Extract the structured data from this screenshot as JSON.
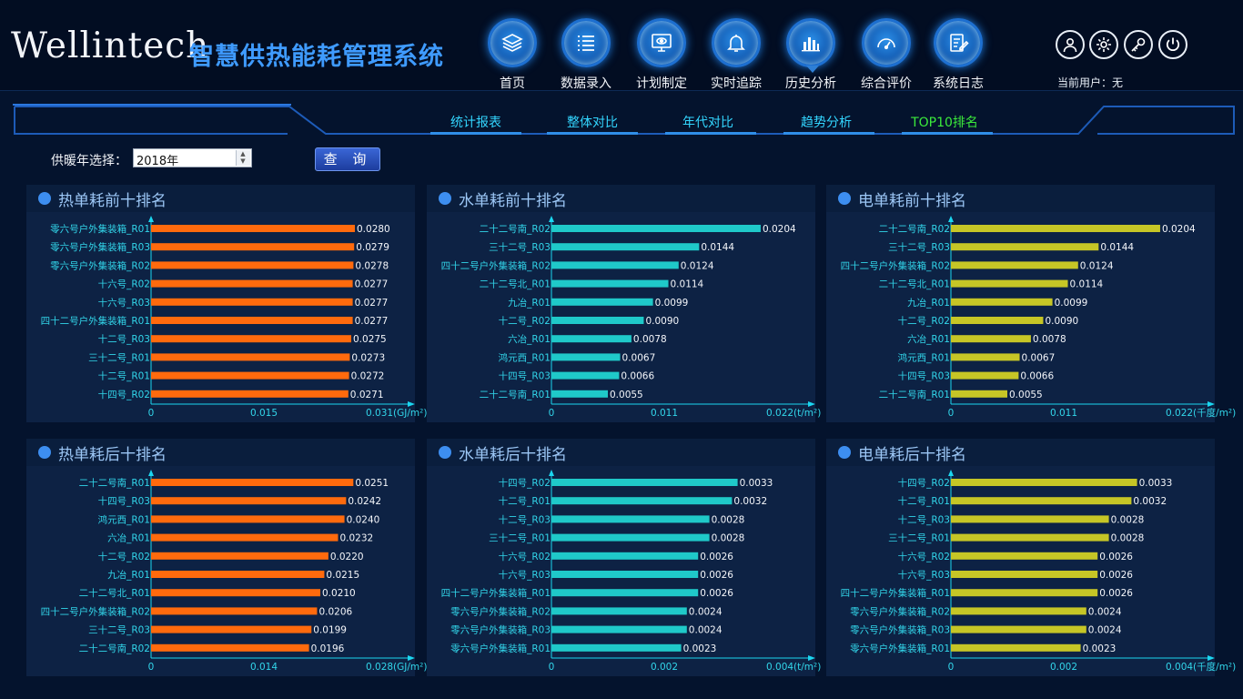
{
  "header": {
    "brand": "Wellintech",
    "title": "智慧供热能耗管理系统",
    "nav": [
      {
        "label": "首页",
        "icon": "layers-icon"
      },
      {
        "label": "数据录入",
        "icon": "list-icon"
      },
      {
        "label": "计划制定",
        "icon": "monitor-eye-icon"
      },
      {
        "label": "实时追踪",
        "icon": "bell-icon"
      },
      {
        "label": "历史分析",
        "icon": "bar-chart-icon",
        "active": true
      },
      {
        "label": "综合评价",
        "icon": "gauge-icon"
      },
      {
        "label": "系统日志",
        "icon": "document-edit-icon"
      }
    ],
    "utilities": [
      "user-icon",
      "gear-icon",
      "key-icon",
      "power-icon"
    ],
    "current_user": "当前用户：无"
  },
  "subnav": {
    "tabs": [
      "统计报表",
      "整体对比",
      "年代对比",
      "趋势分析",
      "TOP10排名"
    ],
    "active": "TOP10排名"
  },
  "query": {
    "label": "供暖年选择：",
    "year_value": "2018年",
    "button": "查 询"
  },
  "colors": {
    "heat": "#ff6a0d",
    "water": "#1fc9c9",
    "electric": "#c6c626",
    "axis": "#1bd6f0",
    "label": "#32d6ea"
  },
  "panels": [
    {
      "title": "热单耗前十排名",
      "chart_data": {
        "type": "bar",
        "orientation": "horizontal",
        "categories": [
          "零六号户外集装箱_R01",
          "零六号户外集装箱_R03",
          "零六号户外集装箱_R02",
          "十六号_R02",
          "十六号_R03",
          "四十二号户外集装箱_R01",
          "十二号_R03",
          "三十二号_R01",
          "十二号_R01",
          "十四号_R02"
        ],
        "values": [
          0.028,
          0.0279,
          0.0278,
          0.0277,
          0.0277,
          0.0277,
          0.0275,
          0.0273,
          0.0272,
          0.0271
        ],
        "value_labels": [
          "0.0280",
          "0.0279",
          "0.0278",
          "0.0277",
          "0.0277",
          "0.0277",
          "0.0275",
          "0.0273",
          "0.0272",
          "0.0271"
        ],
        "xlim": [
          0,
          0.031
        ],
        "x_ticks": [
          "0",
          "0.015",
          "0.031"
        ],
        "unit": "(GJ/m²)",
        "color": "heat"
      }
    },
    {
      "title": "水单耗前十排名",
      "chart_data": {
        "type": "bar",
        "orientation": "horizontal",
        "categories": [
          "二十二号南_R02",
          "三十二号_R03",
          "四十二号户外集装箱_R02",
          "二十二号北_R01",
          "九冶_R01",
          "十二号_R02",
          "六冶_R01",
          "鸿元西_R01",
          "十四号_R03",
          "二十二号南_R01"
        ],
        "values": [
          0.0204,
          0.0144,
          0.0124,
          0.0114,
          0.0099,
          0.009,
          0.0078,
          0.0067,
          0.0066,
          0.0055
        ],
        "value_labels": [
          "0.0204",
          "0.0144",
          "0.0124",
          "0.0114",
          "0.0099",
          "0.0090",
          "0.0078",
          "0.0067",
          "0.0066",
          "0.0055"
        ],
        "xlim": [
          0,
          0.022
        ],
        "x_ticks": [
          "0",
          "0.011",
          "0.022"
        ],
        "unit": "(t/m²)",
        "color": "water"
      }
    },
    {
      "title": "电单耗前十排名",
      "chart_data": {
        "type": "bar",
        "orientation": "horizontal",
        "categories": [
          "二十二号南_R02",
          "三十二号_R03",
          "四十二号户外集装箱_R02",
          "二十二号北_R01",
          "九冶_R01",
          "十二号_R02",
          "六冶_R01",
          "鸿元西_R01",
          "十四号_R03",
          "二十二号南_R01"
        ],
        "values": [
          0.0204,
          0.0144,
          0.0124,
          0.0114,
          0.0099,
          0.009,
          0.0078,
          0.0067,
          0.0066,
          0.0055
        ],
        "value_labels": [
          "0.0204",
          "0.0144",
          "0.0124",
          "0.0114",
          "0.0099",
          "0.0090",
          "0.0078",
          "0.0067",
          "0.0066",
          "0.0055"
        ],
        "xlim": [
          0,
          0.022
        ],
        "x_ticks": [
          "0",
          "0.011",
          "0.022"
        ],
        "unit": "(千度/m²)",
        "color": "electric"
      }
    },
    {
      "title": "热单耗后十排名",
      "chart_data": {
        "type": "bar",
        "orientation": "horizontal",
        "categories": [
          "二十二号南_R01",
          "十四号_R03",
          "鸿元西_R01",
          "六冶_R01",
          "十二号_R02",
          "九冶_R01",
          "二十二号北_R01",
          "四十二号户外集装箱_R02",
          "三十二号_R03",
          "二十二号南_R02"
        ],
        "values": [
          0.0251,
          0.0242,
          0.024,
          0.0232,
          0.022,
          0.0215,
          0.021,
          0.0206,
          0.0199,
          0.0196
        ],
        "value_labels": [
          "0.0251",
          "0.0242",
          "0.0240",
          "0.0232",
          "0.0220",
          "0.0215",
          "0.0210",
          "0.0206",
          "0.0199",
          "0.0196"
        ],
        "xlim": [
          0,
          0.028
        ],
        "x_ticks": [
          "0",
          "0.014",
          "0.028"
        ],
        "unit": "(GJ/m²)",
        "color": "heat"
      }
    },
    {
      "title": "水单耗后十排名",
      "chart_data": {
        "type": "bar",
        "orientation": "horizontal",
        "categories": [
          "十四号_R02",
          "十二号_R01",
          "十二号_R03",
          "三十二号_R01",
          "十六号_R02",
          "十六号_R03",
          "四十二号户外集装箱_R01",
          "零六号户外集装箱_R02",
          "零六号户外集装箱_R03",
          "零六号户外集装箱_R01"
        ],
        "values": [
          0.0033,
          0.0032,
          0.0028,
          0.0028,
          0.0026,
          0.0026,
          0.0026,
          0.0024,
          0.0024,
          0.0023
        ],
        "value_labels": [
          "0.0033",
          "0.0032",
          "0.0028",
          "0.0028",
          "0.0026",
          "0.0026",
          "0.0026",
          "0.0024",
          "0.0024",
          "0.0023"
        ],
        "xlim": [
          0,
          0.004
        ],
        "x_ticks": [
          "0",
          "0.002",
          "0.004"
        ],
        "unit": "(t/m²)",
        "color": "water"
      }
    },
    {
      "title": "电单耗后十排名",
      "chart_data": {
        "type": "bar",
        "orientation": "horizontal",
        "categories": [
          "十四号_R02",
          "十二号_R01",
          "十二号_R03",
          "三十二号_R01",
          "十六号_R02",
          "十六号_R03",
          "四十二号户外集装箱_R01",
          "零六号户外集装箱_R02",
          "零六号户外集装箱_R03",
          "零六号户外集装箱_R01"
        ],
        "values": [
          0.0033,
          0.0032,
          0.0028,
          0.0028,
          0.0026,
          0.0026,
          0.0026,
          0.0024,
          0.0024,
          0.0023
        ],
        "value_labels": [
          "0.0033",
          "0.0032",
          "0.0028",
          "0.0028",
          "0.0026",
          "0.0026",
          "0.0026",
          "0.0024",
          "0.0024",
          "0.0023"
        ],
        "xlim": [
          0,
          0.004
        ],
        "x_ticks": [
          "0",
          "0.002",
          "0.004"
        ],
        "unit": "(千度/m²)",
        "color": "electric"
      }
    }
  ]
}
